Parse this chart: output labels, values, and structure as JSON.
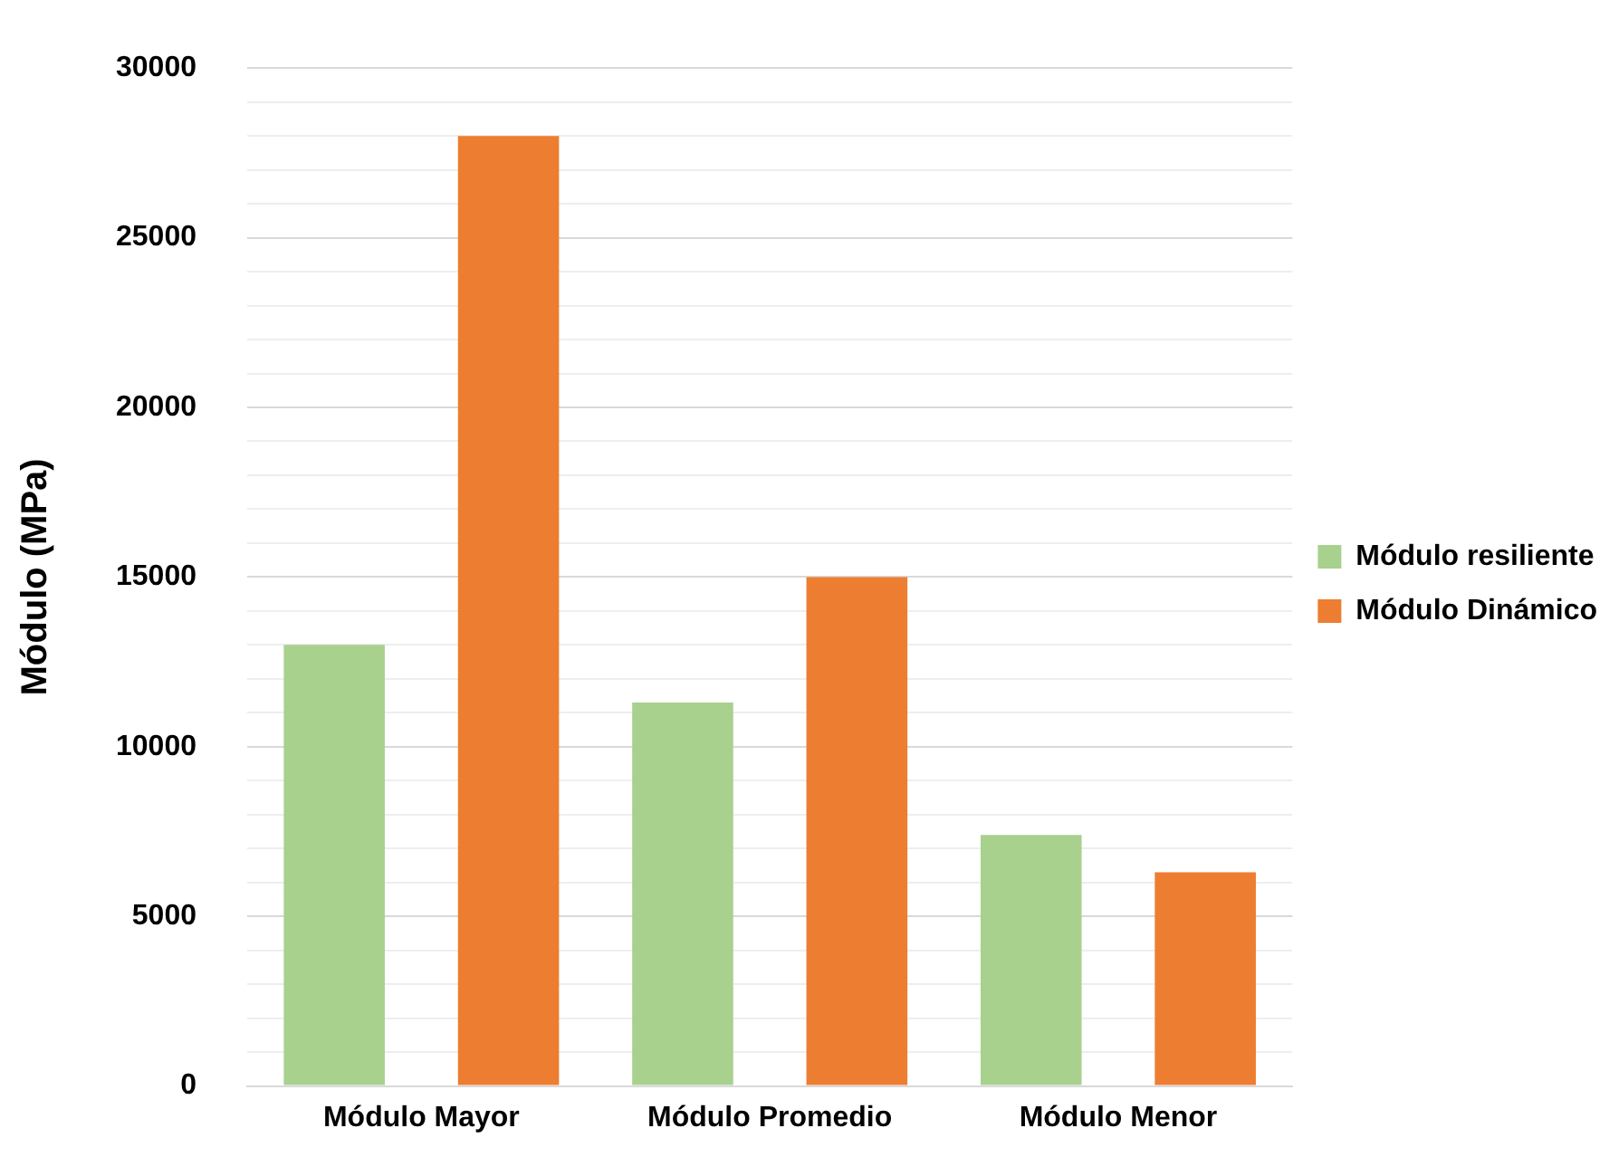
{
  "chart_data": {
    "type": "bar",
    "ylabel": "Módulo (MPa)",
    "categories": [
      "Módulo Mayor",
      "Módulo Promedio",
      "Módulo Menor"
    ],
    "series": [
      {
        "name": "Módulo resiliente",
        "color": "#a9d18e",
        "values": [
          13000,
          11300,
          7400
        ]
      },
      {
        "name": "Módulo Dinámico",
        "color": "#ed7d31",
        "values": [
          28000,
          15000,
          6300
        ]
      }
    ],
    "ylim": [
      0,
      30000
    ],
    "yticks": [
      0,
      {
        "value": 1000,
        "label": null
      },
      {
        "value": 2000,
        "label": null
      },
      {
        "value": 3000,
        "label": null
      },
      {
        "value": 4000,
        "label": null
      },
      5000,
      {
        "value": 6000,
        "label": null
      },
      {
        "value": 7000,
        "label": null
      },
      {
        "value": 8000,
        "label": null
      },
      {
        "value": 9000,
        "label": null
      },
      10000,
      {
        "value": 11000,
        "label": null
      },
      {
        "value": 12000,
        "label": null
      },
      {
        "value": 13000,
        "label": null
      },
      {
        "value": 14000,
        "label": null
      },
      15000,
      {
        "value": 16000,
        "label": null
      },
      {
        "value": 17000,
        "label": null
      },
      {
        "value": 18000,
        "label": null
      },
      {
        "value": 19000,
        "label": null
      },
      20000,
      {
        "value": 21000,
        "label": null
      },
      {
        "value": 22000,
        "label": null
      },
      {
        "value": 23000,
        "label": null
      },
      {
        "value": 24000,
        "label": null
      },
      25000,
      {
        "value": 26000,
        "label": null
      },
      {
        "value": 27000,
        "label": null
      },
      {
        "value": 28000,
        "label": null
      },
      {
        "value": 29000,
        "label": null
      },
      30000
    ],
    "grid": "y",
    "legend": "right"
  }
}
